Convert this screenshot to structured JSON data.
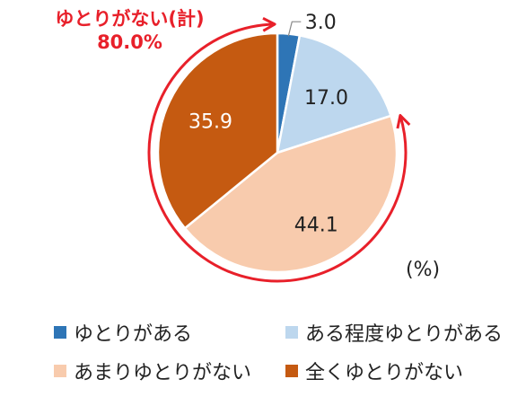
{
  "chart_data": {
    "type": "pie",
    "categories": [
      "ゆとりがある",
      "ある程度ゆとりがある",
      "あまりゆとりがない",
      "全くゆとりがない"
    ],
    "values": [
      3.0,
      17.0,
      44.1,
      35.9
    ],
    "value_labels": [
      "3.0",
      "17.0",
      "44.1",
      "35.9"
    ],
    "colors": [
      "#2e75b6",
      "#bdd7ee",
      "#f8cbad",
      "#c55a11"
    ],
    "label_colors": [
      "#222222",
      "#222222",
      "#222222",
      "#ffffff"
    ],
    "unit_label": "(%)",
    "annotation": {
      "label": "ゆとりがない(計)",
      "value": "80.0%",
      "color": "#e8202a"
    },
    "legend_placement": "bottom"
  }
}
